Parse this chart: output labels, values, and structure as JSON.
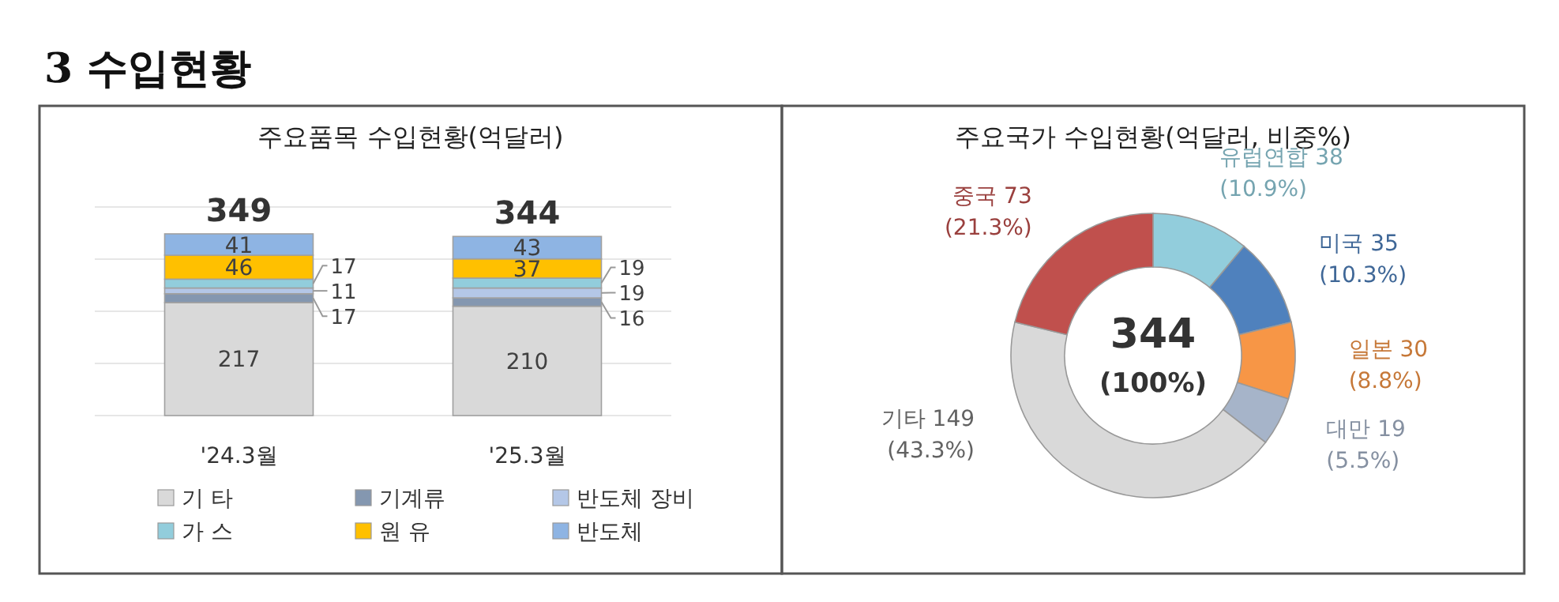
{
  "chart_data": [
    {
      "type": "bar",
      "stacked": true,
      "title": "주요품목 수입현황(억달러)",
      "annotations": [
        "3 수입현황"
      ],
      "categories": [
        "'24.3월",
        "'25.3월"
      ],
      "data_labels": true,
      "totals": [
        "349",
        "344"
      ],
      "legend": "bottom",
      "series": [
        {
          "name": "기 타",
          "color": "#d9d9d9",
          "values": [
            217,
            210
          ]
        },
        {
          "name": "기계류",
          "color": "#8497b0",
          "values": [
            17,
            16
          ]
        },
        {
          "name": "반도체 장비",
          "color": "#b4c7e7",
          "values": [
            11,
            19
          ]
        },
        {
          "name": "가 스",
          "color": "#92cddc",
          "values": [
            17,
            19
          ]
        },
        {
          "name": "원 유",
          "color": "#ffc000",
          "values": [
            46,
            37
          ]
        },
        {
          "name": "반도체",
          "color": "#8eb4e3",
          "values": [
            41,
            43
          ]
        }
      ]
    },
    {
      "type": "donut",
      "title": "주요국가 수입현황(억달러, 비중%)",
      "categories": [
        "유럽연합",
        "미국",
        "일본",
        "대만",
        "기타",
        "중국"
      ],
      "values": [
        38,
        35,
        30,
        19,
        149,
        73
      ],
      "value_labels": [
        "38\n(10.9%)",
        "35\n(10.3%)",
        "30\n(8.8%)",
        "19\n(5.5%)",
        "149\n(43.3%)",
        "73\n(21.3%)"
      ],
      "colors": [
        "#92cddc",
        "#4f81bd",
        "#f79646",
        "#a6b4c9",
        "#d9d9d9",
        "#c0504d"
      ],
      "annotations": [
        "344",
        "(100%)"
      ]
    }
  ]
}
